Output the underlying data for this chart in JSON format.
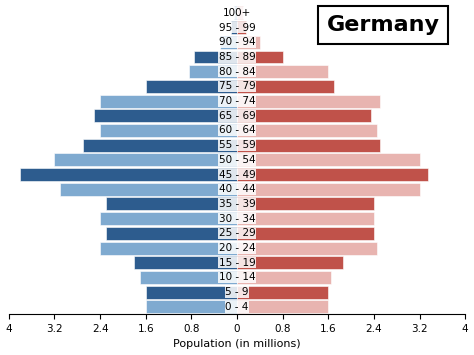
{
  "age_groups": [
    "0 - 4",
    "5 - 9",
    "10 - 14",
    "15 - 19",
    "20 - 24",
    "25 - 29",
    "30 - 34",
    "35 - 39",
    "40 - 44",
    "45 - 49",
    "50 - 54",
    "55 - 59",
    "60 - 64",
    "65 - 69",
    "70 - 74",
    "75 - 79",
    "80 - 84",
    "85 - 89",
    "90 - 94",
    "95 - 99",
    "100+"
  ],
  "male_values": [
    1.6,
    1.6,
    1.7,
    1.8,
    2.4,
    2.3,
    2.4,
    2.3,
    3.1,
    3.8,
    3.2,
    2.7,
    2.4,
    2.5,
    2.4,
    1.6,
    0.85,
    0.75,
    0.3,
    0.1,
    0.05
  ],
  "female_values": [
    1.6,
    1.6,
    1.65,
    1.85,
    2.45,
    2.4,
    2.4,
    2.4,
    3.2,
    3.35,
    3.2,
    2.5,
    2.45,
    2.35,
    2.5,
    1.7,
    1.6,
    0.8,
    0.4,
    0.15,
    0.1
  ],
  "male_dark": "#2d5c8e",
  "male_light": "#7faad0",
  "female_dark": "#c0524a",
  "female_light": "#e8b4b0",
  "title": "Germany",
  "xlabel": "Population (in millions)",
  "xlim": 4.0,
  "xtick_vals": [
    4,
    3.2,
    2.4,
    1.6,
    0.8,
    0,
    0.8,
    1.6,
    2.4,
    3.2,
    4
  ],
  "background_color": "#ffffff",
  "title_fontsize": 16,
  "label_fontsize": 8,
  "tick_fontsize": 7.5
}
